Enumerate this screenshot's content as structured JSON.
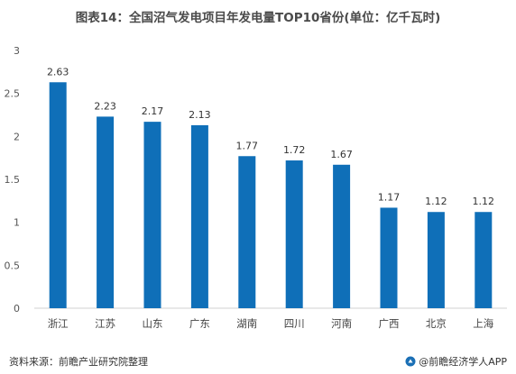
{
  "chart_data": {
    "type": "bar",
    "title": "图表14：全国沼气发电项目年发电量TOP10省份(单位：亿千瓦时)",
    "categories": [
      "浙江",
      "江苏",
      "山东",
      "广东",
      "湖南",
      "四川",
      "河南",
      "广西",
      "北京",
      "上海"
    ],
    "values": [
      2.63,
      2.23,
      2.17,
      2.13,
      1.77,
      1.72,
      1.67,
      1.17,
      1.12,
      1.12
    ],
    "data_labels": [
      "2.63",
      "2.23",
      "2.17",
      "2.13",
      "1.77",
      "1.72",
      "1.67",
      "1.17",
      "1.12",
      "1.12"
    ],
    "yticks": [
      "0",
      "0.5",
      "1",
      "1.5",
      "2",
      "2.5",
      "3"
    ],
    "ylim": [
      0,
      3
    ],
    "xlabel": "",
    "ylabel": "",
    "grid": false,
    "bar_color": "#0f6fb8"
  },
  "footer": {
    "source": "资料来源：前瞻产业研究院整理",
    "brand": "@前瞻经济学人APP",
    "brand_icon": "qianzhan-logo-icon"
  }
}
